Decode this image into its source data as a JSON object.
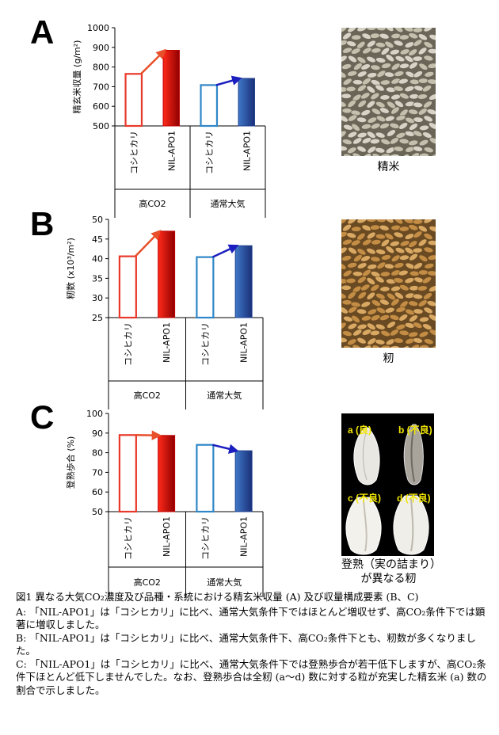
{
  "colors": {
    "koshihikari_high": "#e8392b",
    "nil_high": "#c00000",
    "koshihikari_amb": "#2e86c8",
    "nil_amb": "#1f3f8f",
    "arrow_high": "#e8502b",
    "arrow_amb": "#1b1fbf",
    "seed_label": "#f2e600"
  },
  "chart_data": [
    {
      "type": "bar",
      "panel": "A",
      "ylabel": "精玄米収量 (g/m²)",
      "ylim": [
        500,
        1000
      ],
      "yticks": [
        500,
        600,
        700,
        800,
        900,
        1000
      ],
      "groups": [
        "高CO2",
        "通常大気"
      ],
      "categories": [
        "コシヒカリ",
        "NIL-APO1",
        "コシヒカリ",
        "NIL-APO1"
      ],
      "values": [
        765,
        885,
        708,
        742
      ]
    },
    {
      "type": "bar",
      "panel": "B",
      "ylabel": "籾数 (x10³/m²)",
      "ylim": [
        25,
        50
      ],
      "yticks": [
        25,
        30,
        35,
        40,
        45,
        50
      ],
      "groups": [
        "高CO2",
        "通常大気"
      ],
      "categories": [
        "コシヒカリ",
        "NIL-APO1",
        "コシヒカリ",
        "NIL-APO1"
      ],
      "values": [
        40.6,
        47.0,
        40.4,
        43.3
      ]
    },
    {
      "type": "bar",
      "panel": "C",
      "ylabel": "登熟歩合 (%)",
      "ylim": [
        50,
        100
      ],
      "yticks": [
        50,
        60,
        70,
        80,
        90,
        100
      ],
      "groups": [
        "高CO2",
        "通常大気"
      ],
      "categories": [
        "コシヒカリ",
        "NIL-APO1",
        "コシヒカリ",
        "NIL-APO1"
      ],
      "values": [
        89,
        88.8,
        84,
        81
      ]
    }
  ],
  "panels": {
    "a": {
      "letter": "A",
      "photo_label": "精米"
    },
    "b": {
      "letter": "B",
      "photo_label": "籾"
    },
    "c": {
      "letter": "C",
      "photo_label": "登熟（実の詰まり）が異なる籾",
      "seed_a": "a (良)",
      "seed_b": "b (不良)",
      "seed_c": "c (不良)",
      "seed_d": "d (不良)"
    }
  },
  "caption": {
    "title": "図1 異なる大気CO₂濃度及び品種・系統における精玄米収量 (A) 及び収量構成要素 (B、C)",
    "line_a": "A: 「NIL-APO1」は「コシヒカリ」に比べ、通常大気条件下ではほとんど増収せず、高CO₂条件下では顕著に増収しました。",
    "line_b": "B: 「NIL-APO1」は「コシヒカリ」に比べ、通常大気条件下、高CO₂条件下とも、籾数が多くなりました。",
    "line_c": "C: 「NIL-APO1」は「コシヒカリ」に比べ、通常大気条件下では登熟歩合が若干低下しますが、高CO₂条件下ほとんど低下しませんでした。なお、登熟歩合は全籾 (a～d) 数に対する粒が充実した精玄米 (a) 数の割合で示しました。"
  }
}
